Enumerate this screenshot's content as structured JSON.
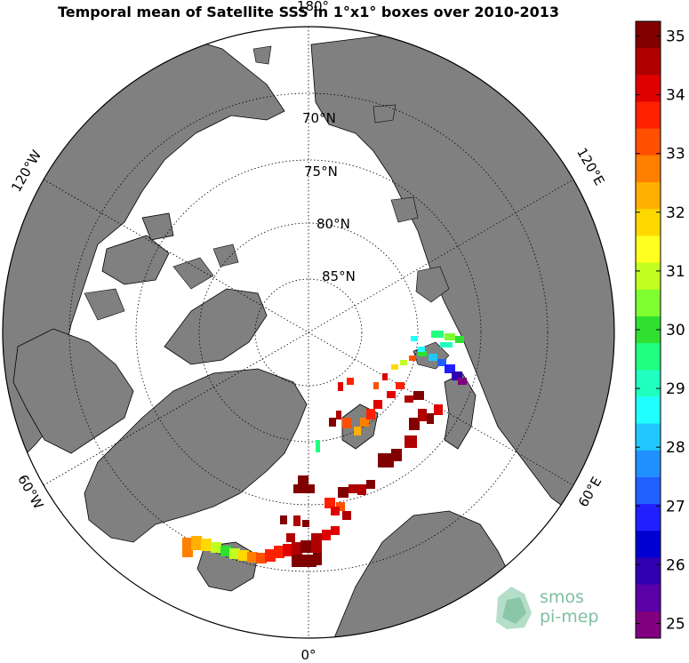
{
  "title": "Temporal mean of Satellite SSS in 1°x1° boxes over 2010-2013",
  "latitude_labels": [
    "70°N",
    "75°N",
    "80°N",
    "85°N"
  ],
  "longitude_labels": {
    "top": "180°",
    "bottom": "0°",
    "upper_left": "120°W",
    "upper_right": "120°E",
    "lower_left": "60°W",
    "lower_right": "60°E"
  },
  "colorbar": {
    "min": 24.75,
    "max": 35.25,
    "ticks": [
      "35",
      "34",
      "33",
      "32",
      "31",
      "30",
      "29",
      "28",
      "27",
      "26",
      "25"
    ],
    "colors": [
      "#800000",
      "#b00000",
      "#e00000",
      "#ff2000",
      "#ff5000",
      "#ff8000",
      "#ffb000",
      "#ffd800",
      "#ffff20",
      "#c0ff20",
      "#80ff30",
      "#30e030",
      "#20ff80",
      "#20ffc0",
      "#20ffff",
      "#20c8ff",
      "#2090ff",
      "#2060ff",
      "#2020ff",
      "#0000d0",
      "#3000b0",
      "#5a00a8",
      "#800080"
    ]
  },
  "logo": {
    "line1": "smos",
    "line2": "pi-mep"
  },
  "colors": {
    "land": "#808080",
    "ocean": "#ffffff",
    "coast": "#000000"
  }
}
